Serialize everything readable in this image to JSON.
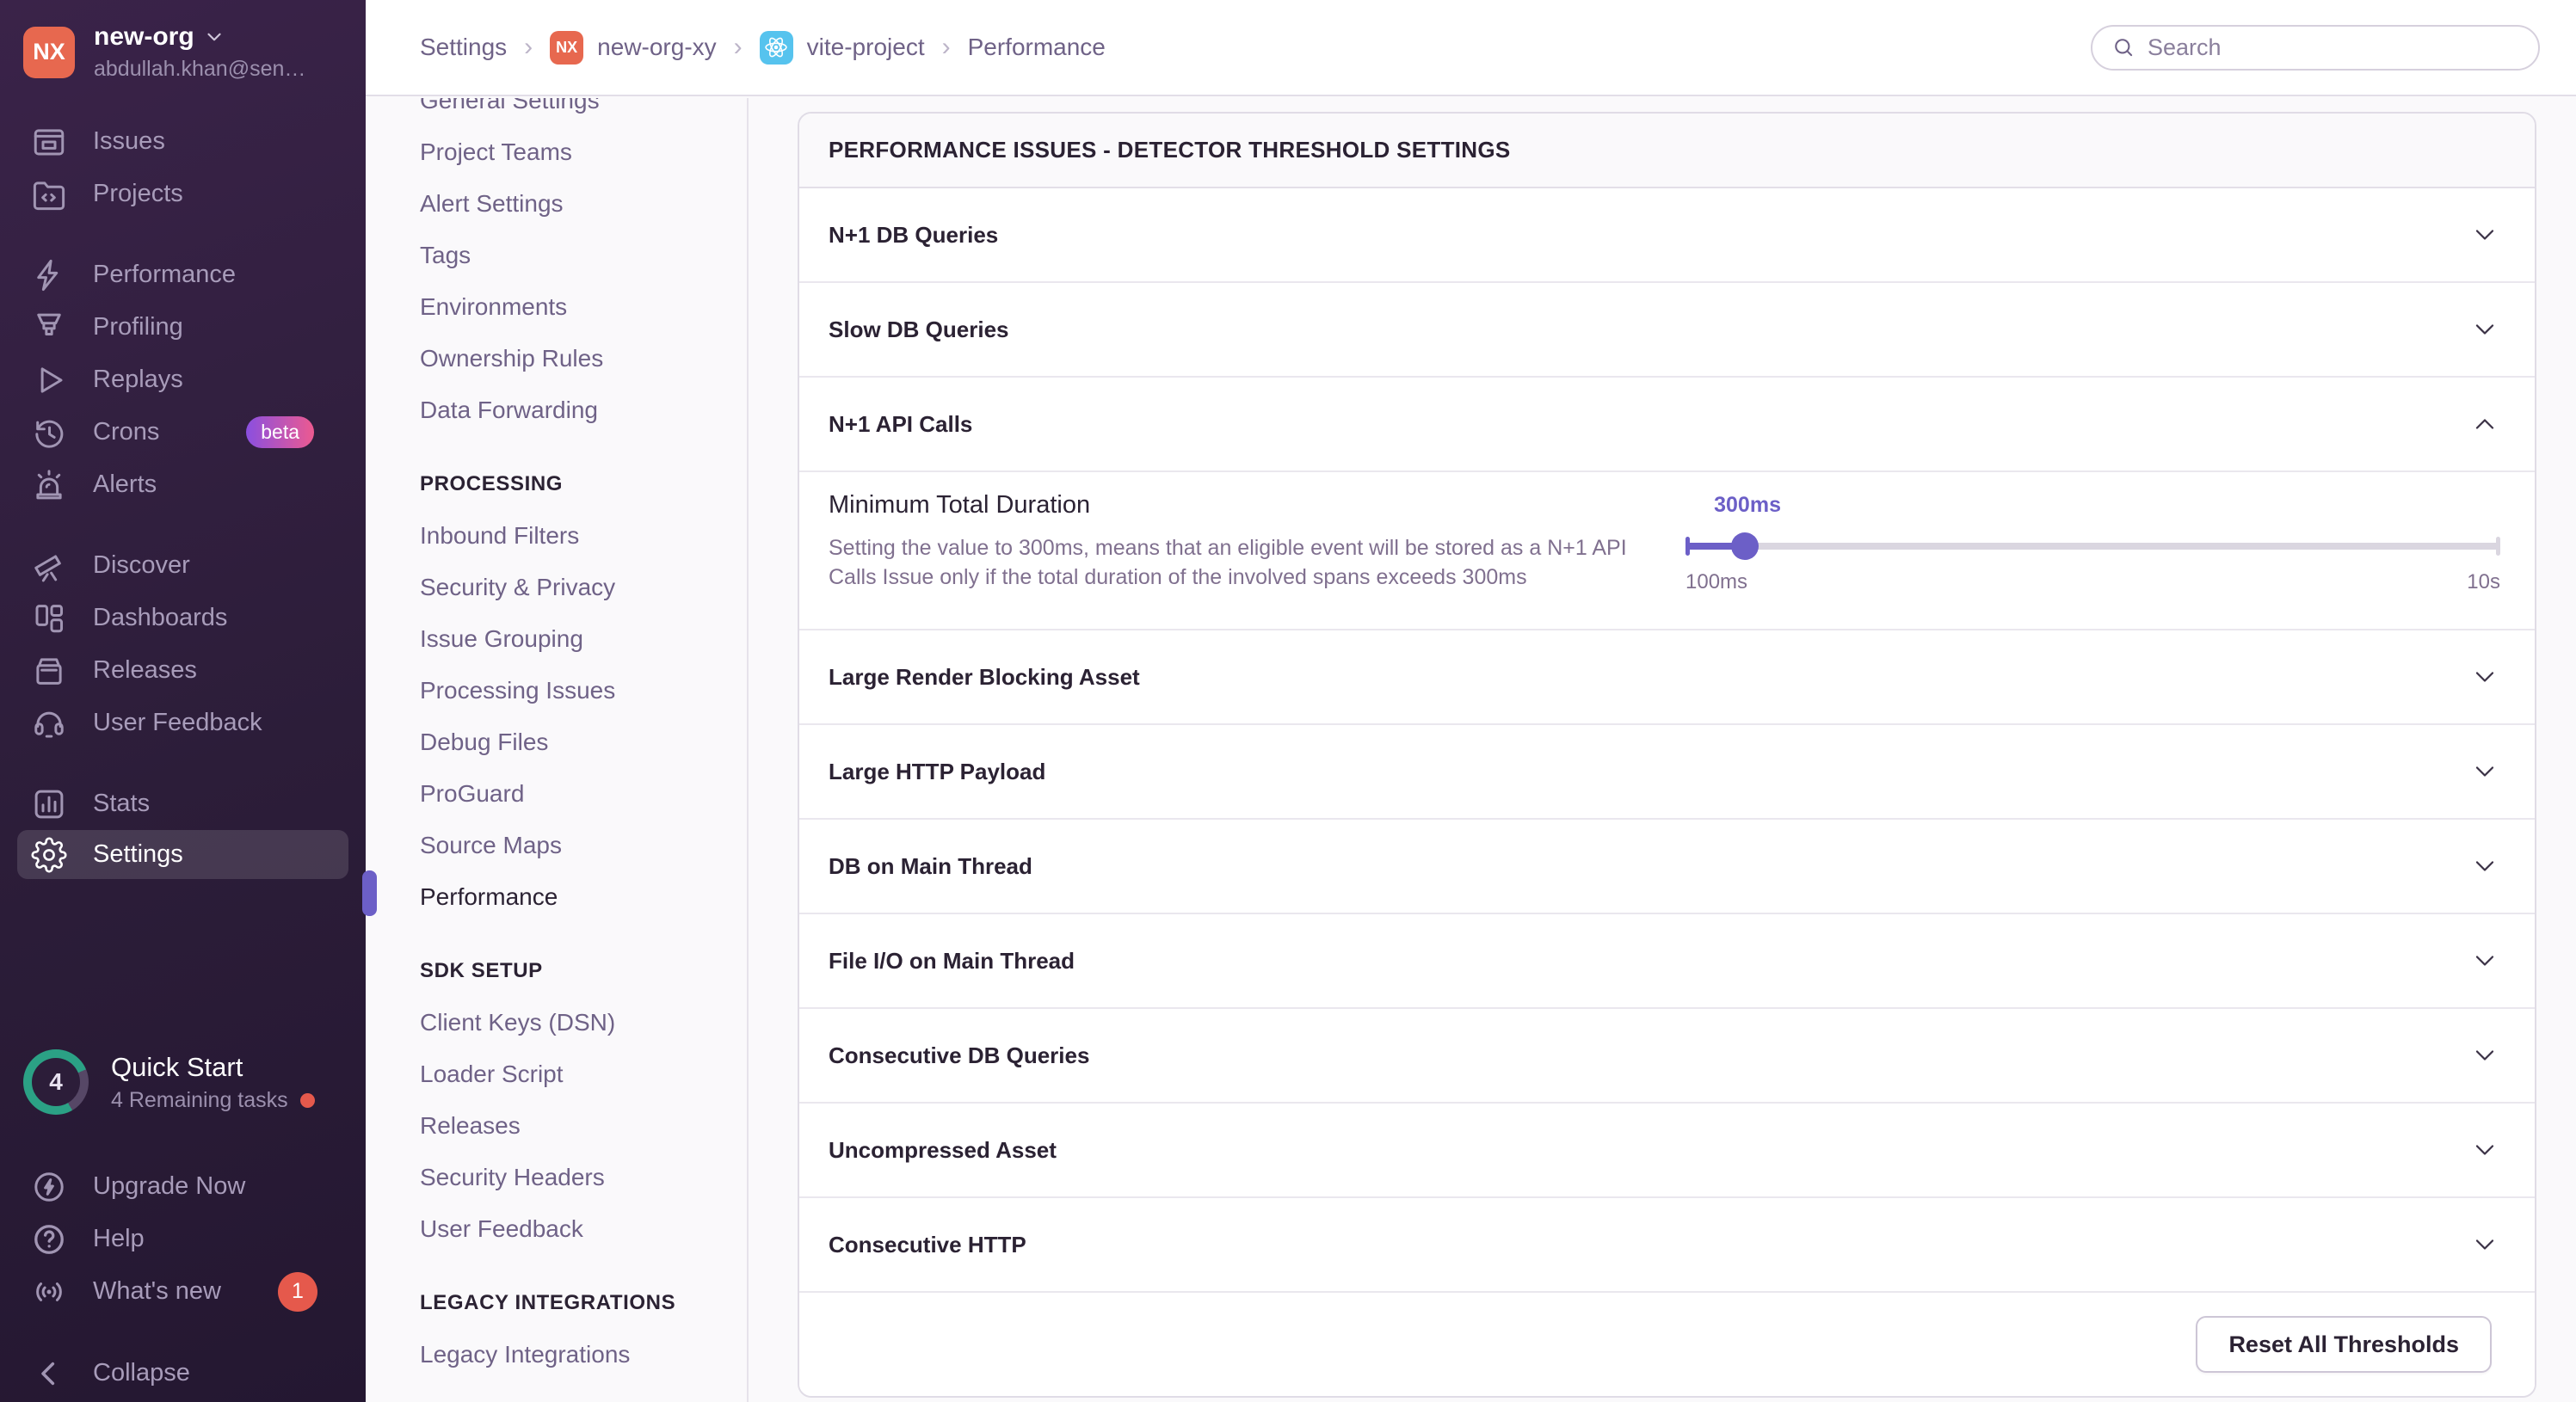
{
  "org": {
    "initials": "NX",
    "name": "new-org",
    "email": "abdullah.khan@sen…"
  },
  "sidebar": {
    "items": [
      {
        "label": "Issues",
        "icon": "issues-icon"
      },
      {
        "label": "Projects",
        "icon": "projects-icon",
        "gap_after": true
      },
      {
        "label": "Performance",
        "icon": "performance-icon"
      },
      {
        "label": "Profiling",
        "icon": "profiling-icon"
      },
      {
        "label": "Replays",
        "icon": "replays-icon"
      },
      {
        "label": "Crons",
        "icon": "crons-icon",
        "badge": "beta"
      },
      {
        "label": "Alerts",
        "icon": "alerts-icon",
        "gap_after": true
      },
      {
        "label": "Discover",
        "icon": "discover-icon"
      },
      {
        "label": "Dashboards",
        "icon": "dashboards-icon"
      },
      {
        "label": "Releases",
        "icon": "releases-icon"
      },
      {
        "label": "User Feedback",
        "icon": "user-feedback-icon",
        "gap_after": true
      },
      {
        "label": "Stats",
        "icon": "stats-icon"
      },
      {
        "label": "Settings",
        "icon": "settings-icon",
        "active": true
      }
    ],
    "quickstart": {
      "count": "4",
      "title": "Quick Start",
      "subtitle": "4 Remaining tasks"
    },
    "footer_items": [
      {
        "label": "Upgrade Now",
        "icon": "upgrade-icon"
      },
      {
        "label": "Help",
        "icon": "help-icon"
      },
      {
        "label": "What's new",
        "icon": "whats-new-icon",
        "badge": "1"
      }
    ],
    "collapse_label": "Collapse"
  },
  "topbar": {
    "breadcrumb": [
      {
        "label": "Settings",
        "icon": null
      },
      {
        "label": "new-org-xy",
        "icon": "org-avatar-icon"
      },
      {
        "label": "vite-project",
        "icon": "react-icon"
      },
      {
        "label": "Performance",
        "icon": null
      }
    ],
    "search_placeholder": "Search"
  },
  "settings_nav": {
    "groups": [
      {
        "header": null,
        "items": [
          {
            "label": "General Settings"
          },
          {
            "label": "Project Teams"
          },
          {
            "label": "Alert Settings"
          },
          {
            "label": "Tags"
          },
          {
            "label": "Environments"
          },
          {
            "label": "Ownership Rules"
          },
          {
            "label": "Data Forwarding"
          }
        ]
      },
      {
        "header": "PROCESSING",
        "items": [
          {
            "label": "Inbound Filters"
          },
          {
            "label": "Security & Privacy"
          },
          {
            "label": "Issue Grouping"
          },
          {
            "label": "Processing Issues"
          },
          {
            "label": "Debug Files"
          },
          {
            "label": "ProGuard"
          },
          {
            "label": "Source Maps"
          },
          {
            "label": "Performance",
            "active": true
          }
        ]
      },
      {
        "header": "SDK SETUP",
        "items": [
          {
            "label": "Client Keys (DSN)"
          },
          {
            "label": "Loader Script"
          },
          {
            "label": "Releases"
          },
          {
            "label": "Security Headers"
          },
          {
            "label": "User Feedback"
          }
        ]
      },
      {
        "header": "LEGACY INTEGRATIONS",
        "items": [
          {
            "label": "Legacy Integrations"
          }
        ]
      }
    ]
  },
  "main": {
    "card_title": "PERFORMANCE ISSUES - DETECTOR THRESHOLD SETTINGS",
    "rows": [
      {
        "label": "N+1 DB Queries",
        "expanded": false
      },
      {
        "label": "Slow DB Queries",
        "expanded": false
      },
      {
        "label": "N+1 API Calls",
        "expanded": true
      },
      {
        "label": "Large Render Blocking Asset",
        "expanded": false
      },
      {
        "label": "Large HTTP Payload",
        "expanded": false
      },
      {
        "label": "DB on Main Thread",
        "expanded": false
      },
      {
        "label": "File I/O on Main Thread",
        "expanded": false
      },
      {
        "label": "Consecutive DB Queries",
        "expanded": false
      },
      {
        "label": "Uncompressed Asset",
        "expanded": false
      },
      {
        "label": "Consecutive HTTP",
        "expanded": false
      }
    ],
    "detail": {
      "title": "Minimum Total Duration",
      "description": "Setting the value to 300ms, means that an eligible event will be stored as a N+1 API Calls Issue only if the total duration of the involved spans exceeds 300ms",
      "slider": {
        "value_label": "300ms",
        "min_label": "100ms",
        "max_label": "10s",
        "percent": 7.3
      }
    },
    "reset_button_label": "Reset All Thresholds"
  },
  "colors": {
    "accent": "#6C5FC7",
    "avatar": "#E7684F",
    "badge_red": "#E5594C",
    "progress_teal": "#2BA185"
  }
}
